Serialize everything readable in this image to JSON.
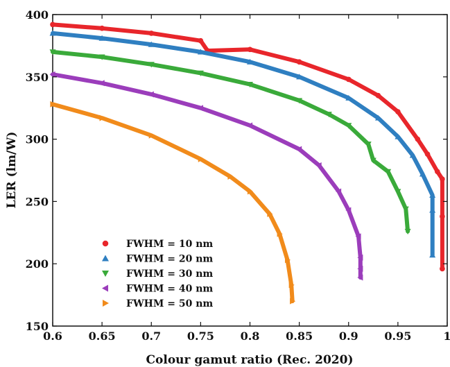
{
  "chart_data": {
    "type": "scatter",
    "title": "",
    "xlabel": "Colour gamut ratio (Rec. 2020)",
    "ylabel": "LER (lm/W)",
    "xlim": [
      0.6,
      1.0
    ],
    "ylim": [
      150,
      400
    ],
    "xticks": [
      "0.6",
      "0.65",
      "0.7",
      "0.75",
      "0.8",
      "0.85",
      "0.9",
      "0.95",
      "1"
    ],
    "yticks": [
      "150",
      "200",
      "250",
      "300",
      "350",
      "400"
    ],
    "grid": false,
    "legend_position": "bottom-left",
    "series": [
      {
        "name": "FWHM = 10 nm",
        "color": "#e8262b",
        "marker": "circle",
        "points": [
          [
            0.6,
            392
          ],
          [
            0.65,
            389
          ],
          [
            0.7,
            385
          ],
          [
            0.75,
            379
          ],
          [
            0.8,
            372
          ],
          [
            0.85,
            362
          ],
          [
            0.9,
            348
          ],
          [
            0.93,
            335
          ],
          [
            0.95,
            322
          ],
          [
            0.97,
            300
          ],
          [
            0.98,
            288
          ],
          [
            0.99,
            274
          ],
          [
            0.995,
            268
          ],
          [
            0.757,
            371
          ],
          [
            0.995,
            238
          ],
          [
            0.995,
            196
          ]
        ]
      },
      {
        "name": "FWHM = 20 nm",
        "color": "#2f7fc1",
        "marker": "triangle-up",
        "points": [
          [
            0.6,
            385
          ],
          [
            0.65,
            381
          ],
          [
            0.7,
            376
          ],
          [
            0.75,
            370
          ],
          [
            0.8,
            362
          ],
          [
            0.85,
            350
          ],
          [
            0.9,
            333
          ],
          [
            0.93,
            317
          ],
          [
            0.95,
            302
          ],
          [
            0.965,
            287
          ],
          [
            0.975,
            272
          ],
          [
            0.985,
            255
          ],
          [
            0.985,
            243
          ],
          [
            0.985,
            207
          ]
        ]
      },
      {
        "name": "FWHM = 30 nm",
        "color": "#3aaa3a",
        "marker": "triangle-down",
        "points": [
          [
            0.6,
            370
          ],
          [
            0.65,
            366
          ],
          [
            0.7,
            360
          ],
          [
            0.75,
            353
          ],
          [
            0.8,
            344
          ],
          [
            0.85,
            331
          ],
          [
            0.88,
            320
          ],
          [
            0.9,
            311
          ],
          [
            0.92,
            296
          ],
          [
            0.94,
            274
          ],
          [
            0.95,
            258
          ],
          [
            0.958,
            244
          ],
          [
            0.96,
            226
          ],
          [
            0.925,
            283
          ]
        ]
      },
      {
        "name": "FWHM = 40 nm",
        "color": "#9b3dbb",
        "marker": "triangle-left",
        "points": [
          [
            0.6,
            352
          ],
          [
            0.65,
            345
          ],
          [
            0.7,
            336
          ],
          [
            0.75,
            325
          ],
          [
            0.8,
            311
          ],
          [
            0.85,
            292
          ],
          [
            0.87,
            279
          ],
          [
            0.89,
            258
          ],
          [
            0.9,
            243
          ],
          [
            0.91,
            222
          ],
          [
            0.912,
            205
          ],
          [
            0.912,
            196
          ],
          [
            0.912,
            189
          ]
        ]
      },
      {
        "name": "FWHM = 50 nm",
        "color": "#f18b1b",
        "marker": "triangle-right",
        "points": [
          [
            0.6,
            328
          ],
          [
            0.65,
            317
          ],
          [
            0.7,
            303
          ],
          [
            0.75,
            284
          ],
          [
            0.78,
            270
          ],
          [
            0.8,
            258
          ],
          [
            0.82,
            240
          ],
          [
            0.83,
            224
          ],
          [
            0.838,
            203
          ],
          [
            0.842,
            183
          ],
          [
            0.843,
            170
          ]
        ]
      }
    ]
  }
}
